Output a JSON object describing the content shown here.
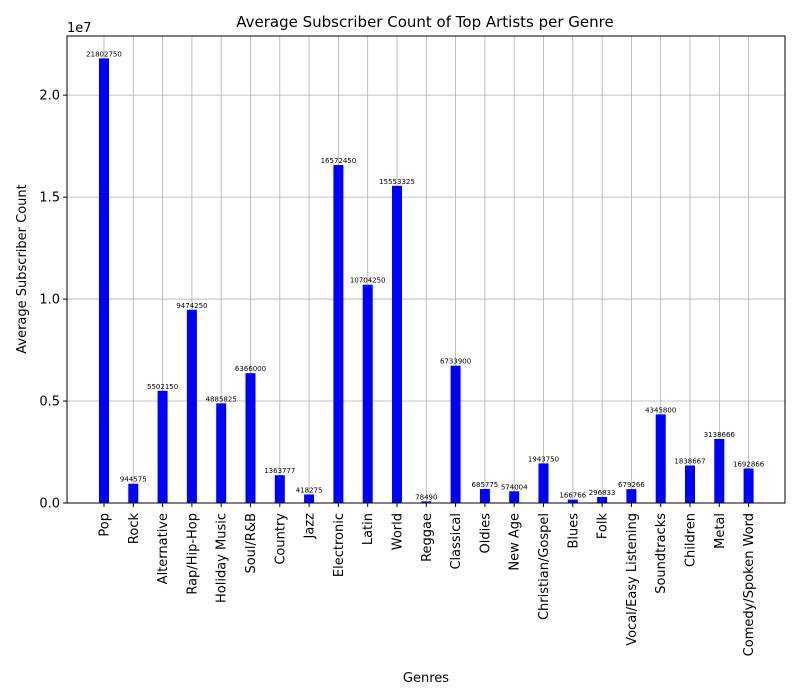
{
  "chart_data": {
    "type": "bar",
    "title": "Average Subscriber Count of Top Artists per Genre",
    "xlabel": "Genres",
    "ylabel": "Average Subscriber Count",
    "y_scale_label": "1e7",
    "ylim": [
      0,
      22900000
    ],
    "yticks": [
      0,
      5000000,
      10000000,
      15000000,
      20000000
    ],
    "ytick_labels": [
      "0.0",
      "0.5",
      "1.0",
      "1.5",
      "2.0"
    ],
    "grid": true,
    "bar_color": "#0000ff",
    "categories": [
      "Pop",
      "Rock",
      "Alternative",
      "Rap/Hip-Hop",
      "Holiday Music",
      "Soul/R&B",
      "Country",
      "Jazz",
      "Electronic",
      "Latin",
      "World",
      "Reggae",
      "Classical",
      "Oldies",
      "New Age",
      "Christian/Gospel",
      "Blues",
      "Folk",
      "Vocal/Easy Listening",
      "Soundtracks",
      "Children",
      "Metal",
      "Comedy/Spoken Word"
    ],
    "values": [
      21802750,
      944575,
      5502150,
      9474250,
      4885825,
      6366000,
      1363777,
      418275,
      16572450,
      10704250,
      15553325,
      78490,
      6733900,
      685775,
      574004,
      1943750,
      166766,
      296833,
      679266,
      4345800,
      1838667,
      3138666,
      1692866
    ],
    "value_labels": [
      "21802750",
      "944575",
      "5502150",
      "9474250",
      "4885825",
      "6366000",
      "1363777",
      "418275",
      "16572450",
      "10704250",
      "15553325",
      "78490",
      "6733900",
      "685775",
      "574004",
      "1943750",
      "166766",
      "296833",
      "679266",
      "4345800",
      "1838667",
      "3138666",
      "1692866"
    ]
  }
}
